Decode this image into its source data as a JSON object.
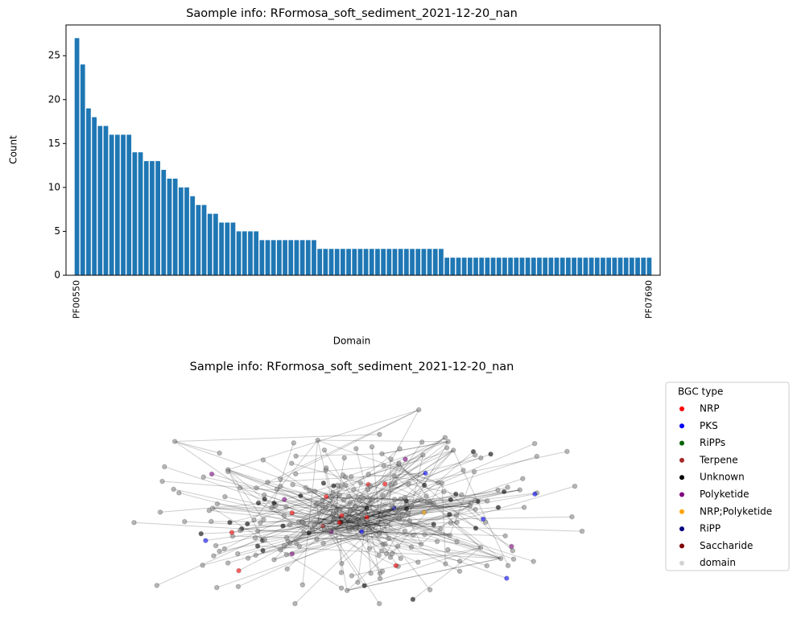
{
  "chart_data": [
    {
      "type": "bar",
      "title": "Saomple info: RFormosa_soft_sediment_2021-12-20_nan",
      "x_label": "Domain",
      "y_label": "Count",
      "color": "#1f77b4",
      "categories": [
        "PF00550",
        null,
        null,
        null,
        null,
        null,
        null,
        null,
        null,
        null,
        null,
        null,
        null,
        null,
        null,
        null,
        null,
        null,
        null,
        null,
        null,
        null,
        null,
        null,
        null,
        null,
        null,
        null,
        null,
        null,
        null,
        null,
        null,
        null,
        null,
        null,
        null,
        null,
        null,
        null,
        null,
        null,
        null,
        null,
        null,
        null,
        null,
        null,
        null,
        null,
        null,
        null,
        null,
        null,
        null,
        null,
        null,
        null,
        null,
        null,
        null,
        null,
        null,
        null,
        null,
        null,
        null,
        null,
        null,
        null,
        null,
        null,
        null,
        null,
        null,
        null,
        null,
        null,
        null,
        null,
        null,
        null,
        null,
        null,
        null,
        null,
        null,
        null,
        null,
        null,
        null,
        null,
        null,
        null,
        null,
        null,
        null,
        null,
        null,
        "PF07690"
      ],
      "values": [
        27,
        24,
        19,
        18,
        17,
        17,
        16,
        16,
        16,
        16,
        14,
        14,
        13,
        13,
        13,
        12,
        11,
        11,
        10,
        10,
        9,
        8,
        8,
        7,
        7,
        6,
        6,
        6,
        5,
        5,
        5,
        5,
        4,
        4,
        4,
        4,
        4,
        4,
        4,
        4,
        4,
        4,
        3,
        3,
        3,
        3,
        3,
        3,
        3,
        3,
        3,
        3,
        3,
        3,
        3,
        3,
        3,
        3,
        3,
        3,
        3,
        3,
        3,
        3,
        2,
        2,
        2,
        2,
        2,
        2,
        2,
        2,
        2,
        2,
        2,
        2,
        2,
        2,
        2,
        2,
        2,
        2,
        2,
        2,
        2,
        2,
        2,
        2,
        2,
        2,
        2,
        2,
        2,
        2,
        2,
        2,
        2,
        2,
        2,
        2
      ],
      "ylim": [
        0,
        28.5
      ],
      "yticks": [
        0,
        5,
        10,
        15,
        20,
        25
      ]
    },
    {
      "type": "network",
      "title": "Sample info: RFormosa_soft_sediment_2021-12-20_nan",
      "legend_title": "BGC type",
      "series": [
        {
          "name": "NRP",
          "color": "#ff0000"
        },
        {
          "name": "PKS",
          "color": "#0000ff"
        },
        {
          "name": "RiPPs",
          "color": "#006400"
        },
        {
          "name": "Terpene",
          "color": "#a52a2a"
        },
        {
          "name": "Unknown",
          "color": "#000000"
        },
        {
          "name": "Polyketide",
          "color": "#800080"
        },
        {
          "name": "NRP;Polyketide",
          "color": "#ffa500"
        },
        {
          "name": "RiPP",
          "color": "#000080"
        },
        {
          "name": "Saccharide",
          "color": "#800000"
        },
        {
          "name": "domain",
          "color": "#d3d3d3"
        }
      ]
    }
  ]
}
